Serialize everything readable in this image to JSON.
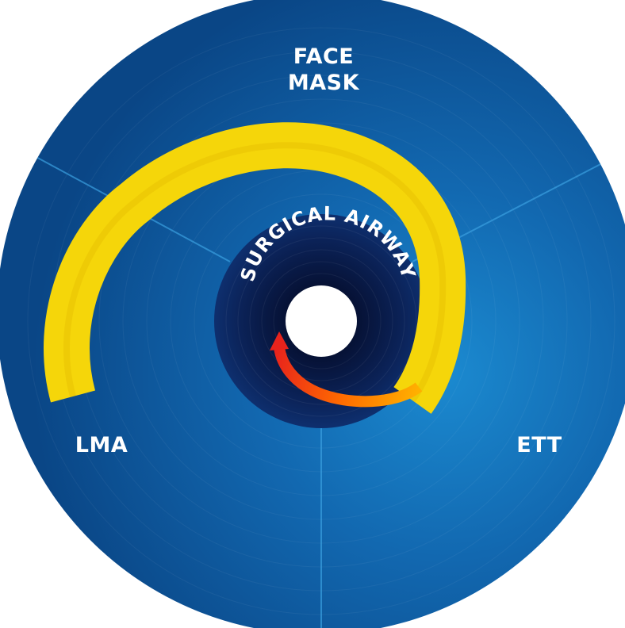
{
  "diagram": {
    "sectors": {
      "face_mask": {
        "line1": "FACE",
        "line2": "MASK"
      },
      "lma": {
        "label": "LMA"
      },
      "ett": {
        "label": "ETT"
      }
    },
    "core": {
      "label": "SURGICAL AIRWAY"
    },
    "colors": {
      "disc_outer": "#0b4f93",
      "disc_highlight": "#1b8ad0",
      "core_dark": "#08163f",
      "core_mid": "#0c2a66",
      "spiral_yellow": "#f5d60a",
      "arrow_orange": "#ff9a00",
      "arrow_red": "#e8231c",
      "label": "#ffffff",
      "divider": "#3aa0e0",
      "hole": "#ffffff"
    },
    "icons": [
      "spiral-arrow",
      "arrowhead-icon"
    ]
  }
}
